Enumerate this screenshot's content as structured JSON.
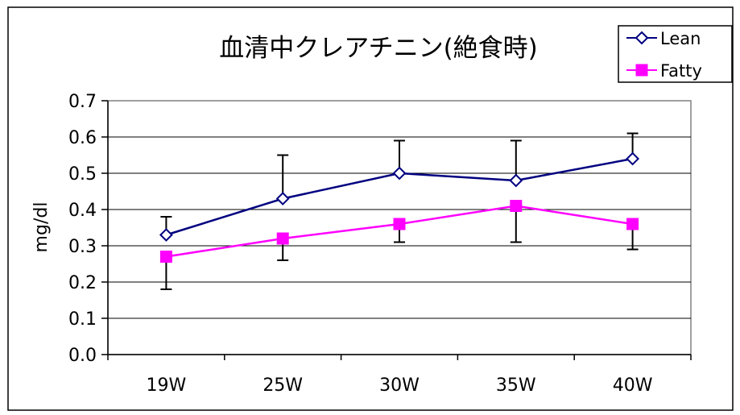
{
  "chart_data": {
    "type": "line",
    "title": "血清中クレアチニン(絶食時)",
    "xlabel": "",
    "ylabel": "mg/dl",
    "categories": [
      "19W",
      "25W",
      "30W",
      "35W",
      "40W"
    ],
    "ylim": [
      0,
      0.7
    ],
    "yticks": [
      "0.0",
      "0.1",
      "0.2",
      "0.3",
      "0.4",
      "0.5",
      "0.6",
      "0.7"
    ],
    "grid": true,
    "legend_position": "top-right",
    "series": [
      {
        "name": "Lean",
        "color": "#000080",
        "marker": "open-diamond",
        "values": [
          0.33,
          0.43,
          0.5,
          0.48,
          0.54
        ],
        "error_upper": [
          0.38,
          0.55,
          0.59,
          0.59,
          0.61
        ]
      },
      {
        "name": "Fatty",
        "color": "#ff00ff",
        "marker": "filled-square",
        "values": [
          0.27,
          0.32,
          0.36,
          0.41,
          0.36
        ],
        "error_lower": [
          0.18,
          0.26,
          0.31,
          0.31,
          0.29
        ]
      }
    ]
  }
}
